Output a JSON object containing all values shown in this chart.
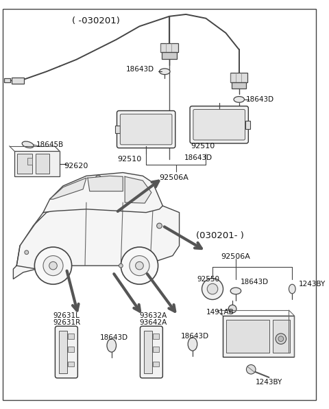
{
  "bg_color": "#ffffff",
  "fig_width": 4.8,
  "fig_height": 5.96,
  "dpi": 100,
  "label_030201_top": "( -030201)",
  "label_030201_bot": "(030201- )",
  "parts": {
    "92506A_top": "92506A",
    "92510_left": "92510",
    "92510_right": "92510",
    "18643D_left": "18643D",
    "18643D_right_top": "18643D",
    "18643D_right_bot": "18643D",
    "18645B": "18645B",
    "92620": "92620",
    "92506A_bot": "92506A",
    "92550": "92550",
    "18643D_r2": "18643D",
    "1243BY_top": "1243BY",
    "1491AB": "1491AB",
    "1243BY_bot": "1243BY",
    "92631L": "92631L",
    "92631R": "92631R",
    "18643D_bl": "18643D",
    "93632A": "93632A",
    "93642A": "93642A",
    "18643D_bc": "18643D"
  }
}
